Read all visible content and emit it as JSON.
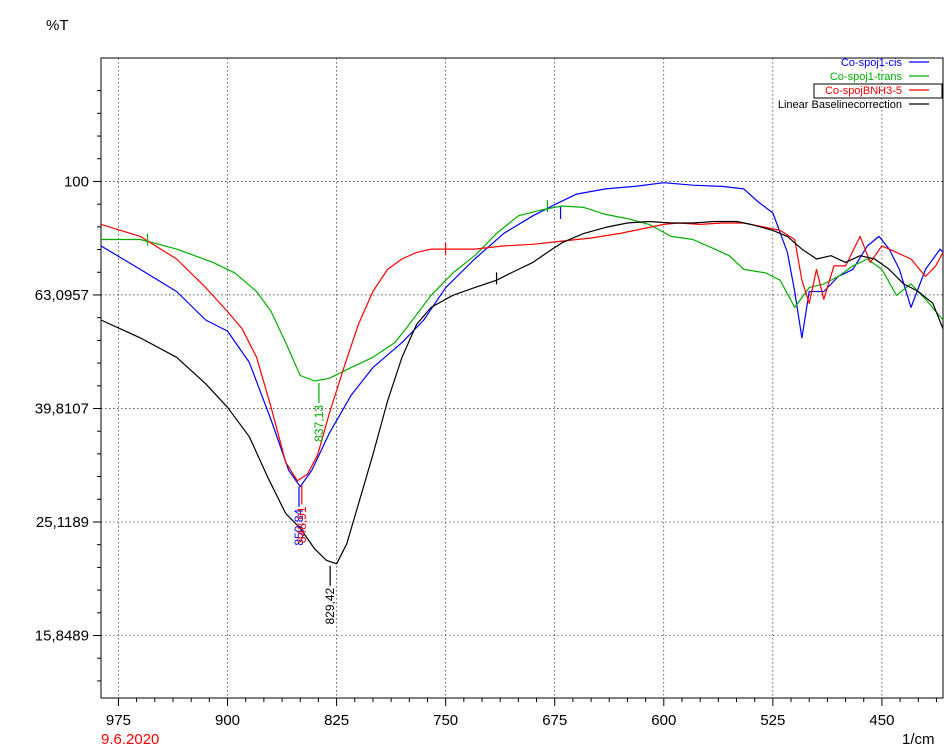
{
  "chart_data": {
    "type": "line",
    "title": "",
    "ylabel": "%T",
    "xlabel": "1/cm",
    "date": "9.6.2020",
    "x_ticks": [
      975,
      900,
      825,
      750,
      675,
      600,
      525,
      450
    ],
    "x_tick_labels": [
      "975",
      "900",
      "825",
      "750",
      "675",
      "600",
      "525",
      "450"
    ],
    "y_ticks": [
      100,
      63.0957,
      39.8107,
      25.1189,
      15.8489
    ],
    "y_tick_labels": [
      "100",
      "63,0957",
      "39,8107",
      "25,1189",
      "15,8489"
    ],
    "xlim": [
      987,
      408
    ],
    "ylim": [
      12.3,
      165
    ],
    "y_scale": "log",
    "grid": true,
    "legend_position": "top-right",
    "colors": {
      "cis": "#0000ff",
      "trans": "#00b000",
      "bnh3": "#ff0000",
      "baseline": "#000000"
    },
    "series": [
      {
        "name": "Co-spoj1-cis",
        "color": "#0000ff",
        "points": [
          [
            987,
            77
          ],
          [
            960,
            70
          ],
          [
            935,
            64
          ],
          [
            915,
            57
          ],
          [
            900,
            54.5
          ],
          [
            885,
            48
          ],
          [
            870,
            38
          ],
          [
            858,
            31
          ],
          [
            850,
            29
          ],
          [
            842,
            31
          ],
          [
            830,
            36
          ],
          [
            815,
            42
          ],
          [
            800,
            47
          ],
          [
            780,
            52
          ],
          [
            765,
            57
          ],
          [
            750,
            65
          ],
          [
            730,
            73
          ],
          [
            710,
            81
          ],
          [
            690,
            87
          ],
          [
            675,
            91
          ],
          [
            660,
            95
          ],
          [
            640,
            97
          ],
          [
            620,
            98
          ],
          [
            600,
            99.5
          ],
          [
            580,
            98.5
          ],
          [
            560,
            98
          ],
          [
            545,
            97
          ],
          [
            535,
            92
          ],
          [
            525,
            88
          ],
          [
            515,
            75
          ],
          [
            510,
            64
          ],
          [
            505,
            53
          ],
          [
            500,
            64
          ],
          [
            490,
            64
          ],
          [
            480,
            68
          ],
          [
            470,
            70
          ],
          [
            460,
            77
          ],
          [
            452,
            80
          ],
          [
            445,
            76
          ],
          [
            438,
            70
          ],
          [
            430,
            60
          ],
          [
            420,
            70
          ],
          [
            410,
            76
          ],
          [
            408,
            75
          ]
        ]
      },
      {
        "name": "Co-spoj1-trans",
        "color": "#00b000",
        "points": [
          [
            987,
            79
          ],
          [
            960,
            79
          ],
          [
            935,
            76
          ],
          [
            910,
            72
          ],
          [
            895,
            69
          ],
          [
            880,
            64
          ],
          [
            870,
            59
          ],
          [
            860,
            52
          ],
          [
            850,
            45.5
          ],
          [
            840,
            44.5
          ],
          [
            830,
            45
          ],
          [
            815,
            47
          ],
          [
            800,
            49
          ],
          [
            785,
            52
          ],
          [
            775,
            56
          ],
          [
            760,
            63
          ],
          [
            745,
            69
          ],
          [
            730,
            74
          ],
          [
            715,
            81
          ],
          [
            700,
            87
          ],
          [
            685,
            89
          ],
          [
            670,
            90.5
          ],
          [
            655,
            90
          ],
          [
            640,
            87.5
          ],
          [
            625,
            86
          ],
          [
            610,
            84
          ],
          [
            595,
            80
          ],
          [
            580,
            79
          ],
          [
            565,
            76
          ],
          [
            555,
            74
          ],
          [
            545,
            70
          ],
          [
            530,
            69
          ],
          [
            520,
            67
          ],
          [
            510,
            60
          ],
          [
            500,
            65
          ],
          [
            490,
            66
          ],
          [
            480,
            68
          ],
          [
            470,
            71
          ],
          [
            460,
            73
          ],
          [
            450,
            70
          ],
          [
            440,
            63
          ],
          [
            430,
            66
          ],
          [
            420,
            62
          ],
          [
            408,
            57
          ]
        ]
      },
      {
        "name": "Co-spojBNH3-5",
        "color": "#ff0000",
        "points": [
          [
            987,
            84
          ],
          [
            960,
            80
          ],
          [
            935,
            73
          ],
          [
            915,
            65
          ],
          [
            900,
            59
          ],
          [
            890,
            55
          ],
          [
            880,
            49
          ],
          [
            870,
            40
          ],
          [
            860,
            32
          ],
          [
            852,
            29.7
          ],
          [
            845,
            30.5
          ],
          [
            838,
            33
          ],
          [
            830,
            39
          ],
          [
            820,
            47
          ],
          [
            810,
            56
          ],
          [
            800,
            64
          ],
          [
            790,
            70
          ],
          [
            780,
            73
          ],
          [
            770,
            75
          ],
          [
            760,
            76
          ],
          [
            745,
            76
          ],
          [
            730,
            76
          ],
          [
            710,
            77
          ],
          [
            690,
            77.5
          ],
          [
            670,
            78.5
          ],
          [
            650,
            79.5
          ],
          [
            630,
            81
          ],
          [
            610,
            83
          ],
          [
            600,
            84
          ],
          [
            590,
            84.5
          ],
          [
            575,
            84
          ],
          [
            560,
            84.5
          ],
          [
            545,
            84.5
          ],
          [
            530,
            83
          ],
          [
            520,
            82
          ],
          [
            510,
            79
          ],
          [
            505,
            67
          ],
          [
            500,
            61
          ],
          [
            495,
            70
          ],
          [
            490,
            62
          ],
          [
            483,
            71
          ],
          [
            475,
            71
          ],
          [
            465,
            80
          ],
          [
            458,
            72
          ],
          [
            450,
            77
          ],
          [
            440,
            75
          ],
          [
            430,
            73
          ],
          [
            420,
            68
          ],
          [
            413,
            71
          ],
          [
            408,
            75
          ]
        ]
      },
      {
        "name": "Linear Baselinecorrection",
        "color": "#000000",
        "points": [
          [
            987,
            57
          ],
          [
            960,
            53
          ],
          [
            935,
            49
          ],
          [
            915,
            44
          ],
          [
            900,
            40
          ],
          [
            885,
            35.5
          ],
          [
            872,
            30
          ],
          [
            860,
            26
          ],
          [
            850,
            24.5
          ],
          [
            840,
            22.5
          ],
          [
            832,
            21.5
          ],
          [
            825,
            21.2
          ],
          [
            818,
            23
          ],
          [
            810,
            27
          ],
          [
            800,
            33
          ],
          [
            790,
            41
          ],
          [
            780,
            49
          ],
          [
            770,
            56
          ],
          [
            760,
            60
          ],
          [
            745,
            63
          ],
          [
            730,
            65
          ],
          [
            715,
            67
          ],
          [
            705,
            69
          ],
          [
            690,
            72
          ],
          [
            680,
            75
          ],
          [
            670,
            78
          ],
          [
            655,
            81
          ],
          [
            640,
            83
          ],
          [
            625,
            84.5
          ],
          [
            610,
            85
          ],
          [
            595,
            84.5
          ],
          [
            580,
            84.5
          ],
          [
            565,
            85
          ],
          [
            550,
            85
          ],
          [
            540,
            84
          ],
          [
            525,
            82
          ],
          [
            515,
            80
          ],
          [
            505,
            76
          ],
          [
            495,
            73
          ],
          [
            485,
            74
          ],
          [
            475,
            72
          ],
          [
            465,
            74
          ],
          [
            455,
            73
          ],
          [
            445,
            70
          ],
          [
            435,
            66
          ],
          [
            425,
            64
          ],
          [
            415,
            61
          ],
          [
            408,
            55
          ]
        ]
      }
    ],
    "peak_labels": [
      {
        "text": "850,84",
        "x": 850.84,
        "y": 29.2,
        "color": "#0000ff"
      },
      {
        "text": "848,91",
        "x": 848.91,
        "y": 29.5,
        "color": "#ff0000"
      },
      {
        "text": "837,13",
        "x": 837.13,
        "y": 44.5,
        "color": "#00b000"
      },
      {
        "text": "829,42",
        "x": 829.42,
        "y": 21.2,
        "color": "#000000"
      }
    ],
    "marks": [
      {
        "x": 955,
        "y": 79,
        "color": "#00b000"
      },
      {
        "x": 750,
        "y": 76,
        "color": "#ff0000"
      },
      {
        "x": 680,
        "y": 90.5,
        "color": "#00b000"
      },
      {
        "x": 715,
        "y": 67.5,
        "color": "#000000"
      },
      {
        "x": 671,
        "y": 88,
        "color": "#0000ff"
      }
    ]
  }
}
